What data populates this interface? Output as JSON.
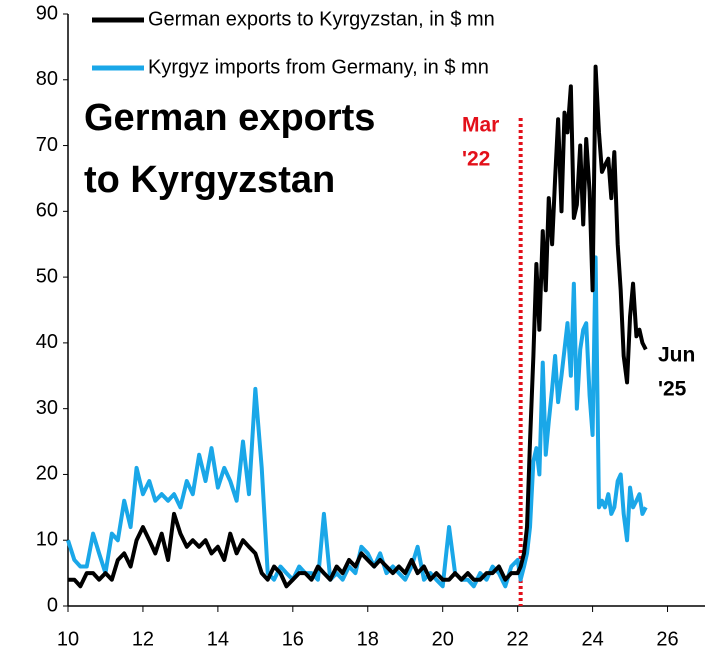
{
  "chart_data": {
    "type": "line",
    "title": [
      "German exports",
      "to Kyrgyzstan"
    ],
    "x": [
      10,
      10.17,
      10.33,
      10.5,
      10.67,
      10.83,
      11,
      11.17,
      11.33,
      11.5,
      11.67,
      11.83,
      12,
      12.17,
      12.33,
      12.5,
      12.67,
      12.83,
      13,
      13.17,
      13.33,
      13.5,
      13.67,
      13.83,
      14,
      14.17,
      14.33,
      14.5,
      14.67,
      14.83,
      15,
      15.17,
      15.33,
      15.5,
      15.67,
      15.83,
      16,
      16.17,
      16.33,
      16.5,
      16.67,
      16.83,
      17,
      17.17,
      17.33,
      17.5,
      17.67,
      17.83,
      18,
      18.17,
      18.33,
      18.5,
      18.67,
      18.83,
      19,
      19.17,
      19.33,
      19.5,
      19.67,
      19.83,
      20,
      20.17,
      20.33,
      20.5,
      20.67,
      20.83,
      21,
      21.17,
      21.33,
      21.5,
      21.67,
      21.83,
      22,
      22.08,
      22.17,
      22.25,
      22.33,
      22.42,
      22.5,
      22.58,
      22.67,
      22.75,
      22.83,
      22.92,
      23,
      23.08,
      23.17,
      23.25,
      23.33,
      23.42,
      23.5,
      23.58,
      23.67,
      23.75,
      23.83,
      23.92,
      24,
      24.08,
      24.17,
      24.25,
      24.33,
      24.42,
      24.5,
      24.58,
      24.67,
      24.75,
      24.83,
      24.92,
      25,
      25.08,
      25.17,
      25.25,
      25.33,
      25.42
    ],
    "series": [
      {
        "name": "German exports to Kyrgyzstan, in $ mn",
        "color": "#000000",
        "values": [
          4,
          4,
          3,
          5,
          5,
          4,
          5,
          4,
          7,
          8,
          6,
          10,
          12,
          10,
          8,
          11,
          7,
          14,
          11,
          9,
          10,
          9,
          10,
          8,
          9,
          7,
          11,
          8,
          10,
          9,
          8,
          5,
          4,
          6,
          5,
          3,
          4,
          5,
          5,
          4,
          6,
          5,
          4,
          6,
          5,
          7,
          6,
          8,
          7,
          6,
          7,
          6,
          5,
          6,
          5,
          7,
          5,
          6,
          4,
          5,
          4,
          4,
          5,
          4,
          5,
          4,
          4,
          5,
          5,
          6,
          4,
          5,
          5,
          6,
          8,
          12,
          25,
          38,
          52,
          42,
          57,
          48,
          62,
          55,
          65,
          74,
          60,
          75,
          72,
          79,
          59,
          61,
          70,
          58,
          71,
          63,
          48,
          82,
          72,
          66,
          67,
          68,
          62,
          69,
          55,
          48,
          38,
          34,
          44,
          49,
          41,
          42,
          40,
          39
        ]
      },
      {
        "name": "Kyrgyz imports from Germany, in $ mn",
        "color": "#1aa7e8",
        "values": [
          10,
          7,
          6,
          6,
          11,
          8,
          5,
          11,
          10,
          16,
          12,
          21,
          17,
          19,
          16,
          17,
          16,
          17,
          15,
          19,
          17,
          23,
          19,
          24,
          18,
          21,
          19,
          16,
          25,
          17,
          33,
          21,
          5,
          4,
          6,
          5,
          4,
          6,
          5,
          5,
          4,
          14,
          4,
          5,
          4,
          6,
          5,
          9,
          8,
          6,
          8,
          5,
          6,
          5,
          4,
          6,
          9,
          4,
          5,
          4,
          3,
          12,
          5,
          4,
          4,
          3,
          5,
          4,
          6,
          5,
          3,
          6,
          7,
          4,
          6,
          8,
          12,
          22,
          24,
          20,
          37,
          23,
          28,
          33,
          38,
          31,
          35,
          39,
          43,
          35,
          49,
          30,
          39,
          42,
          43,
          32,
          26,
          53,
          15,
          16,
          15,
          17,
          14,
          15,
          19,
          20,
          14,
          10,
          18,
          15,
          16,
          17,
          14,
          15
        ]
      }
    ],
    "xlim": [
      10,
      27
    ],
    "xticks": [
      10,
      12,
      14,
      16,
      18,
      20,
      22,
      24,
      26
    ],
    "ylim": [
      0,
      90
    ],
    "yticks": [
      0,
      10,
      20,
      30,
      40,
      50,
      60,
      70,
      80,
      90
    ],
    "annotations": [
      {
        "text": [
          "Mar",
          "'22"
        ],
        "x": 22.08,
        "color": "#e3101a"
      },
      {
        "text": [
          "Jun",
          "'25"
        ]
      }
    ]
  }
}
